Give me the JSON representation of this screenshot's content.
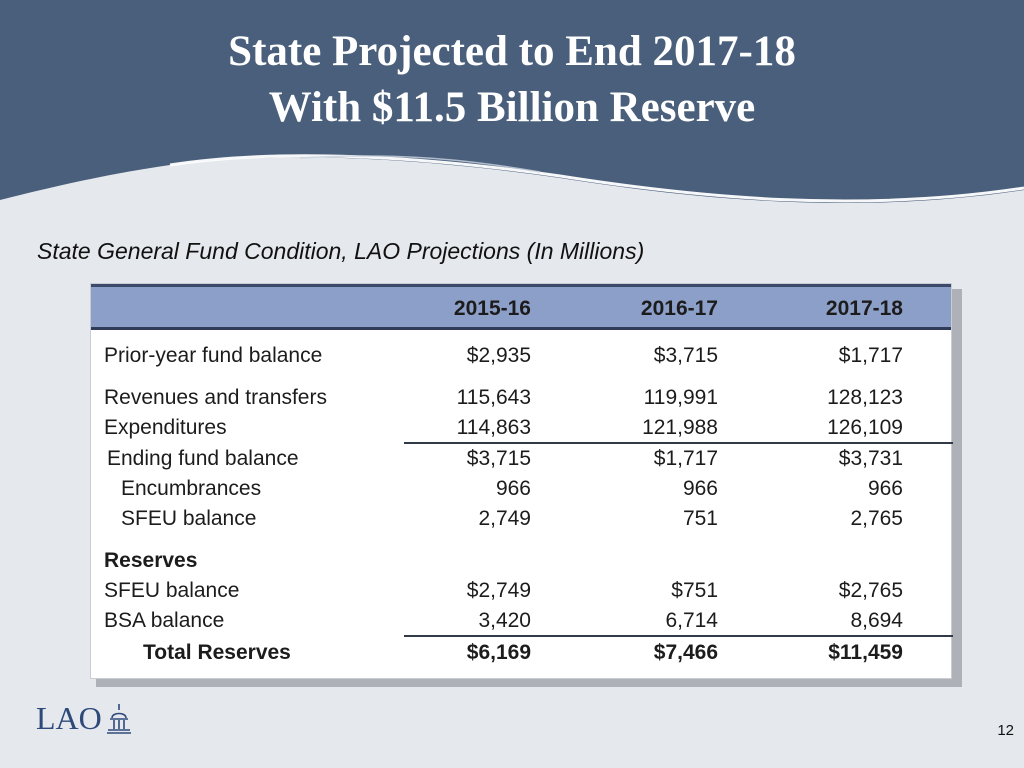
{
  "title": {
    "line1": "State Projected to End 2017-18",
    "line2": "With $11.5 Billion Reserve"
  },
  "subtitle": "State General Fund Condition, LAO Projections (In Millions)",
  "table": {
    "columns": [
      "2015-16",
      "2016-17",
      "2017-18"
    ],
    "rows": [
      {
        "label": "Prior-year fund balance",
        "values": [
          "$2,935",
          "$3,715",
          "$1,717"
        ]
      },
      {
        "label": "Revenues and transfers",
        "values": [
          "115,643",
          "119,991",
          "128,123"
        ]
      },
      {
        "label": "Expenditures",
        "values": [
          "114,863",
          "121,988",
          "126,109"
        ]
      },
      {
        "label": "Ending fund balance",
        "values": [
          "$3,715",
          "$1,717",
          "$3,731"
        ]
      },
      {
        "label": "Encumbrances",
        "values": [
          "966",
          "966",
          "966"
        ]
      },
      {
        "label": "SFEU balance",
        "values": [
          "2,749",
          "751",
          "2,765"
        ]
      },
      {
        "label": "Reserves"
      },
      {
        "label": "SFEU balance",
        "values": [
          "$2,749",
          "$751",
          "$2,765"
        ]
      },
      {
        "label": "BSA balance",
        "values": [
          "3,420",
          "6,714",
          "8,694"
        ]
      },
      {
        "label": "Total Reserves",
        "values": [
          "$6,169",
          "$7,466",
          "$11,459"
        ]
      }
    ]
  },
  "footer": {
    "logo_text": "LAO",
    "page_number": "12"
  },
  "colors": {
    "header": "#4a5f7c",
    "table_header": "#8c9fc8",
    "logo": "#2e4a7a"
  }
}
